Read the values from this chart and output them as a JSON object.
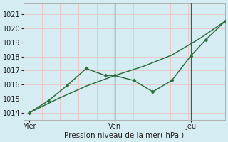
{
  "xlabel": "Pression niveau de la mer( hPa )",
  "background_color": "#d6ecf3",
  "grid_color_h": "#e8c8c8",
  "grid_color_v": "#e8c8c8",
  "line_color": "#2d6e3e",
  "ylim": [
    1013.5,
    1021.8
  ],
  "xlim": [
    -0.3,
    10.3
  ],
  "yticks": [
    1014,
    1015,
    1016,
    1017,
    1018,
    1019,
    1020,
    1021
  ],
  "xtick_positions": [
    0,
    4.5,
    8.5
  ],
  "xtick_labels": [
    "Mer",
    "Ven",
    "Jeu"
  ],
  "vline_positions": [
    4.5,
    8.5
  ],
  "smooth_x": [
    0,
    1.5,
    3,
    4.5,
    6,
    7.5,
    9,
    10.3
  ],
  "smooth_y": [
    1014.0,
    1015.0,
    1015.9,
    1016.65,
    1017.3,
    1018.1,
    1019.3,
    1020.5
  ],
  "jagged_x": [
    0,
    1.0,
    2.0,
    3.0,
    4.0,
    4.5,
    5.5,
    6.5,
    7.5,
    8.5,
    9.3,
    10.3
  ],
  "jagged_y": [
    1014.0,
    1014.85,
    1015.95,
    1017.15,
    1016.65,
    1016.65,
    1016.3,
    1015.5,
    1016.3,
    1018.05,
    1019.2,
    1020.5
  ]
}
